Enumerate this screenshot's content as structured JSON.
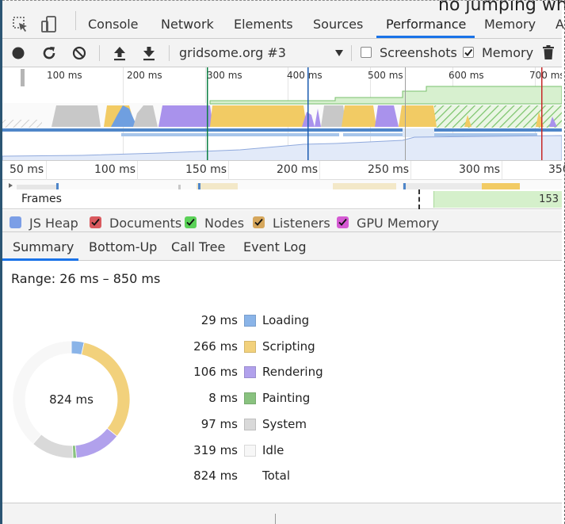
{
  "background_text": "no jumping wh",
  "tabs": [
    {
      "label": "Console"
    },
    {
      "label": "Network"
    },
    {
      "label": "Elements"
    },
    {
      "label": "Sources"
    },
    {
      "label": "Performance"
    },
    {
      "label": "Memory"
    },
    {
      "label": "A"
    }
  ],
  "active_tab": "Performance",
  "toolbar": {
    "profile_select": "gridsome.org #3",
    "screenshots_label": "Screenshots",
    "screenshots_checked": false,
    "memory_label": "Memory",
    "memory_checked": true
  },
  "overview": {
    "ticks": [
      "100 ms",
      "200 ms",
      "300 ms",
      "400 ms",
      "500 ms",
      "600 ms",
      "700 ms"
    ]
  },
  "detail": {
    "ticks": [
      "50 ms",
      "100 ms",
      "150 ms",
      "200 ms",
      "250 ms",
      "300 ms",
      "350"
    ],
    "frames_label": "Frames",
    "frame_value": "153"
  },
  "memory_counters": [
    {
      "label": "JS Heap",
      "color": "#7b9ee6",
      "checked": false
    },
    {
      "label": "Documents",
      "color": "#d9595e",
      "checked": true
    },
    {
      "label": "Nodes",
      "color": "#5bd158",
      "checked": true
    },
    {
      "label": "Listeners",
      "color": "#d6a75c",
      "checked": true
    },
    {
      "label": "GPU Memory",
      "color": "#d55ad3",
      "checked": true
    }
  ],
  "bottom_tabs": [
    {
      "label": "Summary"
    },
    {
      "label": "Bottom-Up"
    },
    {
      "label": "Call Tree"
    },
    {
      "label": "Event Log"
    }
  ],
  "active_bottom_tab": "Summary",
  "summary": {
    "range": "Range: 26 ms – 850 ms",
    "total_center": "824 ms"
  },
  "chart_data": {
    "type": "pie",
    "categories": [
      "Loading",
      "Scripting",
      "Rendering",
      "Painting",
      "System",
      "Idle"
    ],
    "values": [
      29,
      266,
      106,
      8,
      97,
      319
    ],
    "value_labels": [
      "29 ms",
      "266 ms",
      "106 ms",
      "8 ms",
      "97 ms",
      "319 ms"
    ],
    "colors": [
      "#8ab4e8",
      "#f2d17c",
      "#b1a1ec",
      "#89c27f",
      "#d9d9d9",
      "#f7f7f7"
    ],
    "total_label": "Total",
    "total_value": "824 ms"
  }
}
